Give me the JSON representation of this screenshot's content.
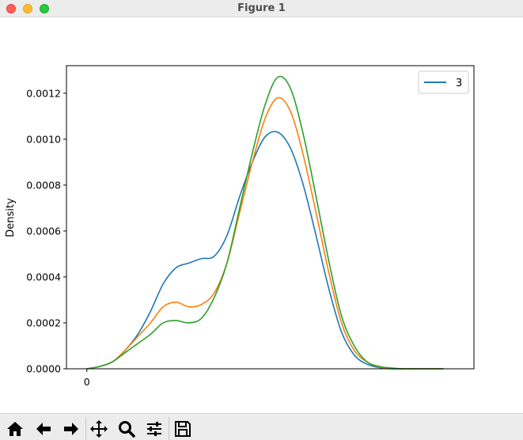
{
  "window": {
    "title": "Figure 1"
  },
  "toolbar": {
    "buttons": [
      {
        "name": "home-button",
        "icon": "home-icon"
      },
      {
        "name": "back-button",
        "icon": "arrow-left-icon"
      },
      {
        "name": "forward-button",
        "icon": "arrow-right-icon"
      },
      {
        "name": "pan-button",
        "icon": "move-icon"
      },
      {
        "name": "zoom-button",
        "icon": "magnifier-icon"
      },
      {
        "name": "configure-subplots-button",
        "icon": "sliders-icon"
      },
      {
        "name": "save-button",
        "icon": "floppy-disk-icon"
      }
    ]
  },
  "chart_data": {
    "type": "line",
    "title": "",
    "xlabel": "",
    "ylabel": "Density",
    "xlim": [
      -160,
      3040
    ],
    "ylim": [
      0,
      0.00132
    ],
    "yticks": [
      0,
      0.0002,
      0.0004,
      0.0006,
      0.0008,
      0.001,
      0.0012
    ],
    "ytick_labels": [
      "0.0000",
      "0.0002",
      "0.0004",
      "0.0006",
      "0.0008",
      "0.0010",
      "0.0012"
    ],
    "xticks": [
      0
    ],
    "xtick_labels": [
      "0"
    ],
    "legend": {
      "position": "top-right",
      "entries": [
        {
          "label": "3",
          "color": "#1f77b4"
        }
      ]
    },
    "grid": false,
    "x": [
      0,
      100,
      200,
      300,
      400,
      500,
      600,
      700,
      800,
      900,
      1000,
      1100,
      1200,
      1300,
      1400,
      1500,
      1600,
      1700,
      1800,
      1900,
      2000,
      2100,
      2200,
      2300,
      2400,
      2500,
      2600,
      2700,
      2800
    ],
    "series": [
      {
        "color": "#1f77b4",
        "values": [
          0,
          1e-05,
          3e-05,
          8e-05,
          0.00015,
          0.00025,
          0.00037,
          0.00044,
          0.00046,
          0.00048,
          0.00049,
          0.00058,
          0.00075,
          0.0009,
          0.00101,
          0.00103,
          0.00096,
          0.0008,
          0.00058,
          0.00035,
          0.00016,
          6e-05,
          2e-05,
          5e-06,
          0,
          0,
          0,
          0,
          0
        ]
      },
      {
        "color": "#ff7f0e",
        "values": [
          0,
          1e-05,
          3e-05,
          8e-05,
          0.00014,
          0.0002,
          0.00027,
          0.00029,
          0.00027,
          0.00028,
          0.00033,
          0.00046,
          0.00068,
          0.0009,
          0.00109,
          0.00118,
          0.00112,
          0.00093,
          0.00068,
          0.00042,
          0.0002,
          8e-05,
          3e-05,
          8e-06,
          2e-06,
          0,
          0,
          0,
          0
        ]
      },
      {
        "color": "#2ca02c",
        "values": [
          0,
          1e-05,
          3e-05,
          7e-05,
          0.00011,
          0.00015,
          0.0002,
          0.00021,
          0.0002,
          0.00022,
          0.00031,
          0.00046,
          0.0007,
          0.00094,
          0.00115,
          0.00127,
          0.00122,
          0.00102,
          0.00075,
          0.00047,
          0.00023,
          0.0001,
          3e-05,
          1e-05,
          3e-06,
          0,
          0,
          0,
          0
        ]
      }
    ]
  }
}
